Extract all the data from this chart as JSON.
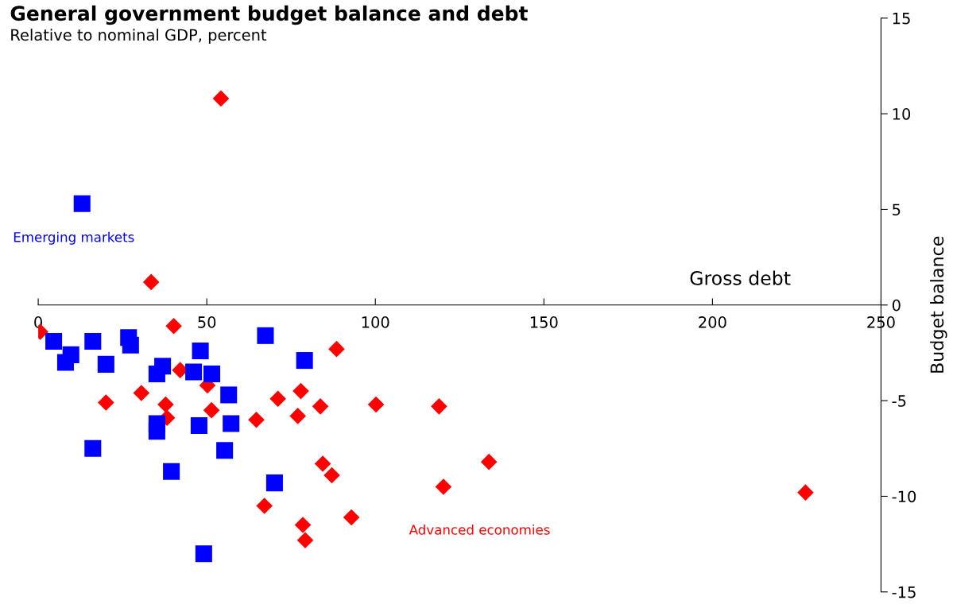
{
  "chart_data": {
    "type": "scatter",
    "title": "General government budget balance and debt",
    "subtitle": "Relative to nominal GDP, percent",
    "xlabel": "Gross debt",
    "ylabel": "Budget balance",
    "xlim": [
      0,
      250
    ],
    "xticks": [
      0,
      50,
      100,
      150,
      200,
      250
    ],
    "ylim": [
      -15,
      15
    ],
    "yticks": [
      -15,
      -10,
      -5,
      0,
      5,
      10,
      15
    ],
    "grid": false,
    "series": [
      {
        "name": "Advanced economies",
        "color": "#ff0000",
        "marker": "diamond",
        "x": [
          0.6,
          40.2,
          88.5,
          42.1,
          50.2,
          30.6,
          20.1,
          37.8,
          38.2,
          51.4,
          71.1,
          77.9,
          83.7,
          64.7,
          77.0,
          84.4,
          87.1,
          67.1,
          78.5,
          79.2,
          92.9,
          54.2,
          33.5,
          100.2,
          118.9,
          120.2,
          133.7,
          227.6
        ],
        "values": [
          -1.4,
          -1.1,
          -2.3,
          -3.4,
          -4.2,
          -4.6,
          -5.1,
          -5.2,
          -5.9,
          -5.5,
          -4.9,
          -4.5,
          -5.3,
          -6.0,
          -5.8,
          -8.3,
          -8.9,
          -10.5,
          -11.5,
          -12.3,
          -11.1,
          10.8,
          1.2,
          -5.2,
          -5.3,
          -9.5,
          -8.2,
          -9.8
        ]
      },
      {
        "name": "Emerging markets",
        "color": "#0000ff",
        "marker": "square",
        "x": [
          4.6,
          9.7,
          8.1,
          16.2,
          20.1,
          26.8,
          27.4,
          36.9,
          35.2,
          48.1,
          46.1,
          51.5,
          67.4,
          79.0,
          56.5,
          35.2,
          35.2,
          47.7,
          57.2,
          16.2,
          55.3,
          39.5,
          70.1,
          49.1,
          13.0
        ],
        "values": [
          -1.9,
          -2.6,
          -3.0,
          -1.9,
          -3.1,
          -1.7,
          -2.1,
          -3.2,
          -3.6,
          -2.4,
          -3.5,
          -3.6,
          -1.6,
          -2.9,
          -4.7,
          -6.2,
          -6.6,
          -6.3,
          -6.2,
          -7.5,
          -7.6,
          -8.7,
          -9.3,
          -13.0,
          5.3
        ]
      }
    ]
  }
}
